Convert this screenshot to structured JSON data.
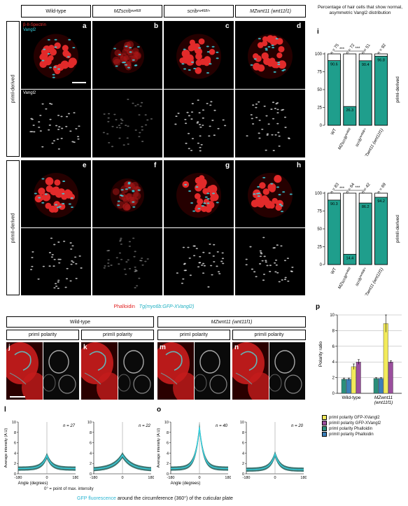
{
  "columns": [
    "Wild-type",
    "MZscrib",
    "scrib",
    "MZwnt11 (wnt11f1)"
  ],
  "col_sup": [
    "",
    "rw468",
    "rw468/+",
    ""
  ],
  "rows": [
    "priml-derived",
    "primII-derived"
  ],
  "panel_letters": [
    "a",
    "b",
    "c",
    "d",
    "e",
    "f",
    "g",
    "h"
  ],
  "stain_labels": {
    "bspectrin": "β-II-Spectrin",
    "vangl2": "Vangl2",
    "vangl2_gray": "Vangl2"
  },
  "i_title": "Percentage of hair cells that show normal, asymmetric Vangl2 distribution",
  "i_letter": "i",
  "i_side_labels": [
    "priml-derived",
    "primII-derived"
  ],
  "sig": "***",
  "chart_i_top": {
    "type": "bar",
    "categories": [
      "WT",
      "MZscrib",
      "scrib",
      "MZwnt11 (wnt11f1)"
    ],
    "cat_sup": [
      "",
      "rw468",
      "rw468/+",
      ""
    ],
    "n": [
      "n = 75",
      "n = 72",
      "n = 51",
      "n = 92"
    ],
    "values": [
      90.6,
      26.3,
      90.4,
      96.8
    ],
    "ylim": [
      0,
      100
    ],
    "yticks": [
      0,
      25,
      50,
      75,
      100
    ]
  },
  "chart_i_bottom": {
    "type": "bar",
    "categories": [
      "WT",
      "MZscrib",
      "scrib",
      "MZwnt11 (wnt11f1)"
    ],
    "cat_sup": [
      "",
      "rw468",
      "rw468/+",
      ""
    ],
    "n": [
      "n = 83",
      "n = 64",
      "n = 42",
      "n = 69"
    ],
    "values": [
      90.3,
      14.4,
      86.2,
      94.2
    ],
    "ylim": [
      0,
      100
    ],
    "yticks": [
      0,
      25,
      50,
      75,
      100
    ]
  },
  "section2": {
    "phalloidin": "Phalloidin",
    "transgene": "Tg(myo6b:GFP-XVangl2)",
    "group_wt": "Wild-type",
    "group_mz": "MZwnt11 (wnt11f1)",
    "sub_labels": [
      "primI polarity",
      "primII polarity",
      "primI polarity",
      "primII polarity"
    ],
    "letters": [
      "j",
      "k",
      "m",
      "n"
    ]
  },
  "chart_p": {
    "type": "bar",
    "letter": "p",
    "ylabel": "Polarity ratio",
    "ylim": [
      0,
      10
    ],
    "yticks": [
      0,
      2,
      4,
      6,
      8,
      10
    ],
    "categories": [
      "Wild-type",
      "MZwnt11 (wnt11f1)"
    ],
    "series": [
      {
        "name": "primI  polarity GFP-XVangl2",
        "color": "#f2ea5a",
        "values": [
          3.4,
          8.9
        ],
        "err": [
          0.35,
          1.1
        ]
      },
      {
        "name": "primII polarity GFP-XVangl2",
        "color": "#9b4f9e",
        "values": [
          4.0,
          4.0
        ],
        "err": [
          0.3,
          0.15
        ]
      },
      {
        "name": "primI  polarity Phalloidin",
        "color": "#2a8f7a",
        "values": [
          1.8,
          1.9
        ],
        "err": [
          0.15,
          0.1
        ]
      },
      {
        "name": "primII polarity Phalloidin",
        "color": "#3b7fb9",
        "values": [
          1.8,
          1.9
        ],
        "err": [
          0.15,
          0.1
        ]
      }
    ]
  },
  "line_charts": [
    {
      "type": "line",
      "letter": "l",
      "n": "n = 27",
      "peak": 3.5,
      "base": 1.0,
      "width": 30
    },
    {
      "type": "line",
      "letter": "",
      "n": "n = 22",
      "peak": 3.6,
      "base": 0.8,
      "width": 55
    },
    {
      "type": "line",
      "letter": "o",
      "n": "n = 40",
      "peak": 9.0,
      "base": 1.0,
      "width": 26
    },
    {
      "type": "line",
      "letter": "",
      "n": "n = 20",
      "peak": 3.8,
      "base": 0.8,
      "width": 30
    }
  ],
  "line_axes": {
    "ylabel": "Average intensity (A.U)",
    "xlabel": "Angle (degrees)",
    "xticks": [
      -180,
      0,
      180
    ],
    "yticks": [
      0,
      2,
      4,
      6,
      8,
      10
    ],
    "ylim": [
      0,
      10
    ]
  },
  "footnote": "0° = point of max. intensity",
  "caption_gfp": "GFP fluorescence",
  "caption_rest": " around the circumference (360°) of the cuticular plate",
  "colors": {
    "teal": "#1f9e8c",
    "red": "#e33",
    "cyan": "#35d6e6",
    "dark_teal": "#1d5f5a"
  }
}
